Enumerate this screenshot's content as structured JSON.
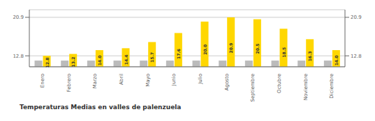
{
  "chart_data": {
    "type": "bar",
    "title": "Temperaturas Medias en valles de palenzuela",
    "categories": [
      "Enero",
      "Febrero",
      "Marzo",
      "Abril",
      "Mayo",
      "Junio",
      "Julio",
      "Agosto",
      "Septiembre",
      "Octubre",
      "Noviembre",
      "Diciembre"
    ],
    "series": [
      {
        "color": "#BBBBBB",
        "values": [
          11.8,
          11.8,
          11.8,
          11.8,
          11.8,
          11.8,
          11.8,
          11.8,
          11.8,
          11.8,
          11.8,
          11.8
        ]
      },
      {
        "color": "#FFD700",
        "values": [
          12.8,
          13.2,
          14.0,
          14.4,
          15.7,
          17.6,
          20.0,
          20.9,
          20.5,
          18.5,
          16.3,
          14.0
        ],
        "data_labels": true,
        "value_labels": [
          "12.8",
          "13.2",
          "14.0",
          "14.4",
          "15.7",
          "17.6",
          "20.0",
          "20.9",
          "20.5",
          "18.5",
          "16.3",
          "14.0"
        ]
      }
    ],
    "ylim": [
      10.5,
      22.5
    ],
    "yticks": [
      12.8,
      20.9
    ],
    "y2lim": [
      10.5,
      22.5
    ],
    "y2ticks": [
      12.8,
      20.9
    ],
    "grid": true
  }
}
